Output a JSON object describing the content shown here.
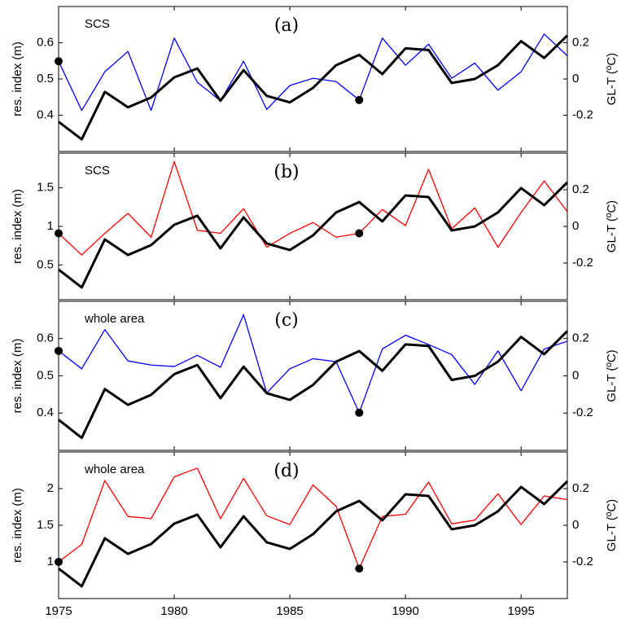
{
  "chart_data": [
    {
      "type": "line",
      "annotation": "(a)",
      "subtitle": "SCS",
      "ylabel": "res. index (m)",
      "y2label": "GL-T (ºC)",
      "x": [
        1975,
        1976,
        1977,
        1978,
        1979,
        1980,
        1981,
        1982,
        1983,
        1984,
        1985,
        1986,
        1987,
        1988,
        1989,
        1990,
        1991,
        1992,
        1993,
        1994,
        1995,
        1996,
        1997
      ],
      "xlim": [
        1975,
        1997
      ],
      "ylim": [
        0.3,
        0.7
      ],
      "yticks": [
        0.4,
        0.5,
        0.6
      ],
      "y2lim": [
        -0.4,
        0.4
      ],
      "y2ticks": [
        -0.2,
        0,
        0.2
      ],
      "series": [
        {
          "color": "#0000ff",
          "marked": [
            0,
            13
          ],
          "values": [
            0.549,
            0.413,
            0.52,
            0.576,
            0.413,
            0.613,
            0.491,
            0.44,
            0.549,
            0.416,
            0.482,
            0.502,
            0.493,
            0.442,
            0.613,
            0.538,
            0.596,
            0.502,
            0.544,
            0.469,
            0.52,
            0.624,
            0.564
          ]
        },
        {
          "color": "#000000",
          "axis": "y2",
          "values": [
            -0.236,
            -0.333,
            -0.071,
            -0.156,
            -0.102,
            0.009,
            0.058,
            -0.12,
            0.049,
            -0.093,
            -0.129,
            -0.049,
            0.076,
            0.133,
            0.027,
            0.169,
            0.16,
            -0.022,
            0,
            0.076,
            0.209,
            0.116,
            0.24
          ]
        }
      ]
    },
    {
      "type": "line",
      "annotation": "(b)",
      "subtitle": "SCS",
      "ylabel": "res. index (m)",
      "y2label": "GL-T (ºC)",
      "x": [
        1975,
        1976,
        1977,
        1978,
        1979,
        1980,
        1981,
        1982,
        1983,
        1984,
        1985,
        1986,
        1987,
        1988,
        1989,
        1990,
        1991,
        1992,
        1993,
        1994,
        1995,
        1996,
        1997
      ],
      "xlim": [
        1975,
        1997
      ],
      "ylim": [
        0.05,
        1.95
      ],
      "yticks": [
        0.5,
        1,
        1.5
      ],
      "y2lim": [
        -0.4,
        0.4
      ],
      "y2ticks": [
        -0.2,
        0,
        0.2
      ],
      "series": [
        {
          "color": "#ff0000",
          "marked": [
            0,
            13
          ],
          "values": [
            0.91,
            0.63,
            0.91,
            1.17,
            0.86,
            1.84,
            0.95,
            0.91,
            1.23,
            0.73,
            0.91,
            1.05,
            0.86,
            0.91,
            1.22,
            1.01,
            1.74,
            0.97,
            1.24,
            0.73,
            1.18,
            1.59,
            1.19
          ]
        },
        {
          "color": "#000000",
          "axis": "y2",
          "values": [
            -0.236,
            -0.333,
            -0.071,
            -0.156,
            -0.102,
            0.009,
            0.058,
            -0.12,
            0.049,
            -0.093,
            -0.129,
            -0.049,
            0.076,
            0.133,
            0.027,
            0.169,
            0.16,
            -0.022,
            0,
            0.076,
            0.209,
            0.116,
            0.24
          ]
        }
      ]
    },
    {
      "type": "line",
      "annotation": "(c)",
      "subtitle": "whole area",
      "ylabel": "res. index (m)",
      "y2label": "GL-T (ºC)",
      "x": [
        1975,
        1976,
        1977,
        1978,
        1979,
        1980,
        1981,
        1982,
        1983,
        1984,
        1985,
        1986,
        1987,
        1988,
        1989,
        1990,
        1991,
        1992,
        1993,
        1994,
        1995,
        1996,
        1997
      ],
      "xlim": [
        1975,
        1997
      ],
      "ylim": [
        0.3,
        0.7
      ],
      "yticks": [
        0.4,
        0.5,
        0.6
      ],
      "y2lim": [
        -0.4,
        0.4
      ],
      "y2ticks": [
        -0.2,
        0,
        0.2
      ],
      "series": [
        {
          "color": "#0000ff",
          "marked": [
            0,
            13
          ],
          "values": [
            0.567,
            0.519,
            0.624,
            0.54,
            0.529,
            0.525,
            0.555,
            0.523,
            0.664,
            0.454,
            0.519,
            0.546,
            0.538,
            0.401,
            0.572,
            0.609,
            0.584,
            0.557,
            0.477,
            0.567,
            0.46,
            0.572,
            0.593
          ]
        },
        {
          "color": "#000000",
          "axis": "y2",
          "values": [
            -0.236,
            -0.333,
            -0.071,
            -0.156,
            -0.102,
            0.009,
            0.058,
            -0.12,
            0.049,
            -0.093,
            -0.129,
            -0.049,
            0.076,
            0.133,
            0.027,
            0.169,
            0.16,
            -0.022,
            0,
            0.076,
            0.209,
            0.116,
            0.24
          ]
        }
      ]
    },
    {
      "type": "line",
      "annotation": "(d)",
      "subtitle": "whole area",
      "ylabel": "res. index (m)",
      "y2label": "GL-T (ºC)",
      "x": [
        1975,
        1976,
        1977,
        1978,
        1979,
        1980,
        1981,
        1982,
        1983,
        1984,
        1985,
        1986,
        1987,
        1988,
        1989,
        1990,
        1991,
        1992,
        1993,
        1994,
        1995,
        1996,
        1997
      ],
      "xlim": [
        1975,
        1997
      ],
      "xticks": [
        1975,
        1980,
        1985,
        1990,
        1995
      ],
      "ylim": [
        0.5,
        2.5
      ],
      "yticks": [
        1,
        1.5,
        2
      ],
      "y2lim": [
        -0.4,
        0.4
      ],
      "y2ticks": [
        -0.2,
        0,
        0.2
      ],
      "series": [
        {
          "color": "#ff0000",
          "marked": [
            0,
            13
          ],
          "values": [
            1.0,
            1.24,
            2.11,
            1.62,
            1.59,
            2.16,
            2.28,
            1.59,
            2.14,
            1.63,
            1.51,
            2.05,
            1.76,
            0.91,
            1.62,
            1.65,
            2.09,
            1.52,
            1.57,
            1.93,
            1.51,
            1.9,
            1.85
          ]
        },
        {
          "color": "#000000",
          "axis": "y2",
          "values": [
            -0.236,
            -0.333,
            -0.071,
            -0.156,
            -0.102,
            0.009,
            0.058,
            -0.12,
            0.049,
            -0.093,
            -0.129,
            -0.049,
            0.076,
            0.133,
            0.027,
            0.169,
            0.16,
            -0.022,
            0,
            0.076,
            0.209,
            0.116,
            0.24
          ]
        }
      ]
    }
  ]
}
